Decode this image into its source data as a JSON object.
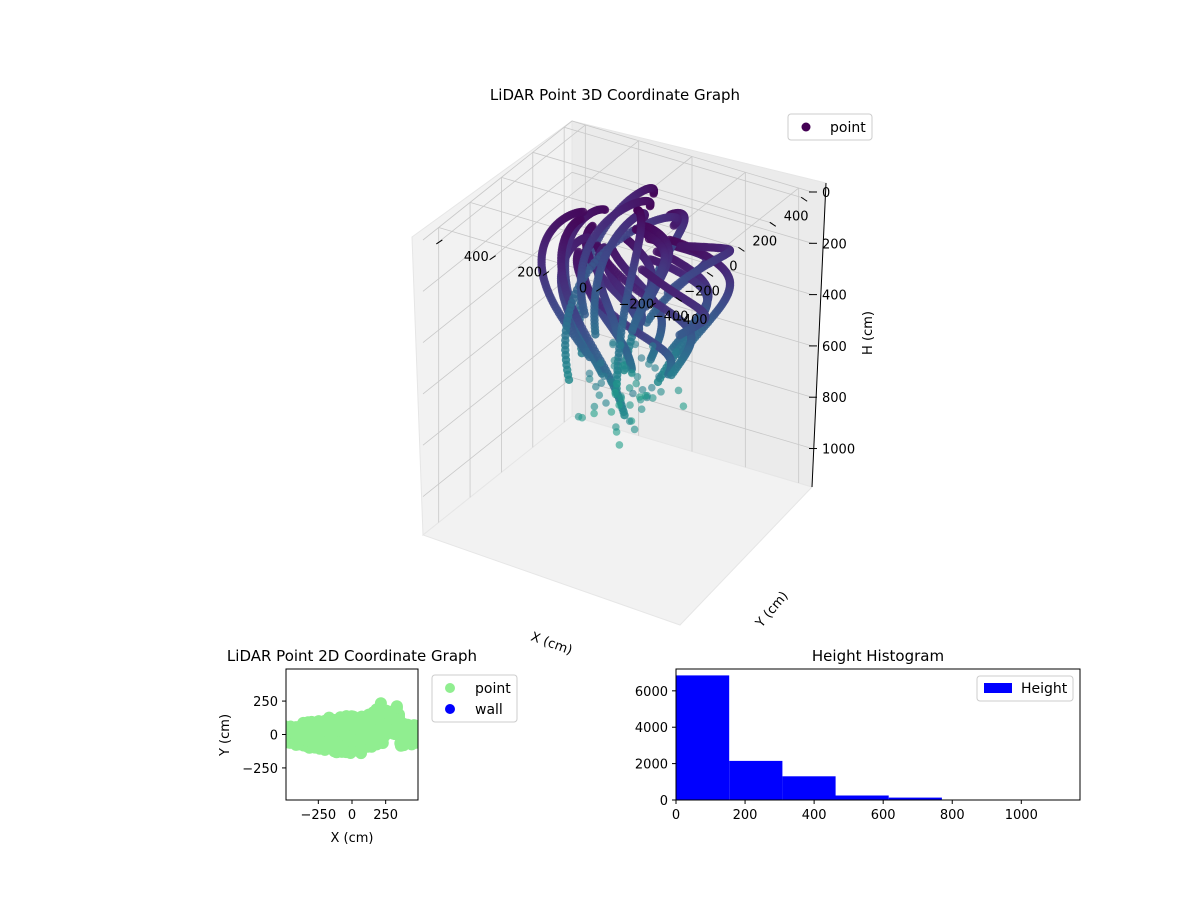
{
  "chart_data": [
    {
      "type": "scatter",
      "projection": "3d",
      "title": "LiDAR Point 3D Coordinate Graph",
      "xlabel": "X (cm)",
      "ylabel": "Y (cm)",
      "zlabel": "H (cm)",
      "xlim": [
        -500,
        450
      ],
      "ylim": [
        -450,
        450
      ],
      "zlim": [
        1150,
        0
      ],
      "z_inverted": true,
      "xticks": [
        -400,
        -200,
        0,
        200,
        400
      ],
      "yticks": [
        400,
        200,
        0,
        -200,
        -400
      ],
      "zticks": [
        0,
        200,
        400,
        600,
        800,
        1000
      ],
      "colormap": "viridis",
      "legend": {
        "placement": "top-right",
        "entries": [
          {
            "label": "point",
            "color": "#440154"
          }
        ]
      },
      "grid": true
    },
    {
      "type": "scatter",
      "title": "LiDAR Point 2D Coordinate Graph",
      "xlabel": "X (cm)",
      "ylabel": "Y (cm)",
      "xlim": [
        -490,
        490
      ],
      "ylim": [
        -490,
        490
      ],
      "xticks": [
        -250,
        0,
        250
      ],
      "yticks": [
        250,
        0,
        -250
      ],
      "series": [
        {
          "name": "point",
          "color": "#90ee90"
        },
        {
          "name": "wall",
          "color": "#0000ff"
        }
      ],
      "legend": {
        "placement": "outside-right"
      }
    },
    {
      "type": "bar",
      "subtype": "histogram",
      "title": "Height Histogram",
      "bin_edges": [
        0,
        154,
        308,
        462,
        616,
        770,
        924,
        1078
      ],
      "values": [
        6850,
        2150,
        1300,
        250,
        130,
        15,
        5
      ],
      "xlim": [
        0,
        1170
      ],
      "ylim": [
        0,
        7200
      ],
      "xticks": [
        0,
        200,
        400,
        600,
        800,
        1000
      ],
      "yticks": [
        0,
        2000,
        4000,
        6000
      ],
      "series": [
        {
          "name": "Height",
          "color": "#0000ff"
        }
      ],
      "legend": {
        "placement": "top-right"
      }
    }
  ]
}
